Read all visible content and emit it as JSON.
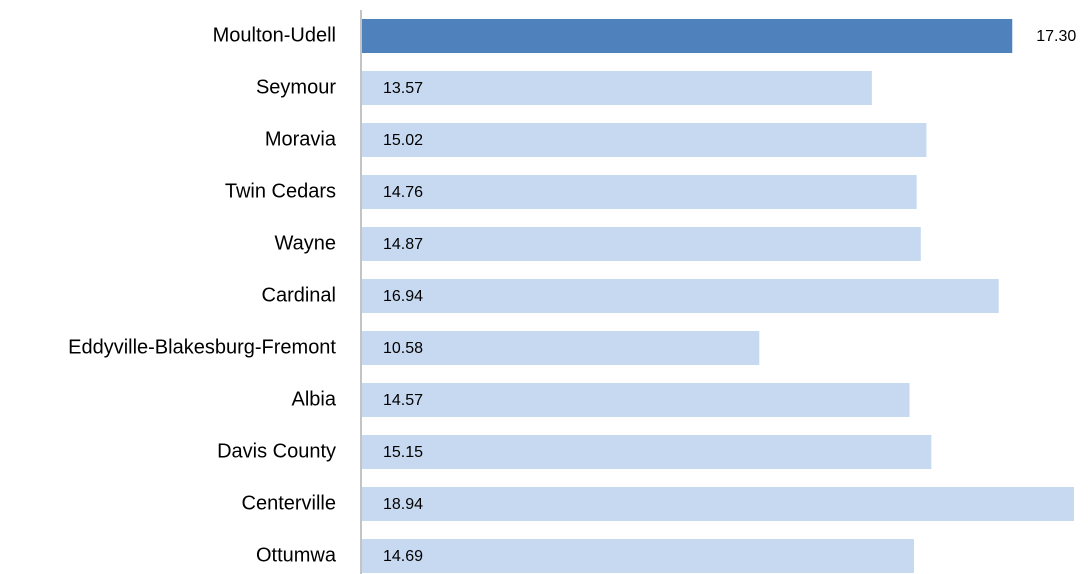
{
  "chart_data": {
    "type": "barh",
    "categories": [
      "Moulton-Udell",
      "Seymour",
      "Moravia",
      "Twin Cedars",
      "Wayne",
      "Cardinal",
      "Eddyville-Blakesburg-Fremont",
      "Albia",
      "Davis County",
      "Centerville",
      "Ottumwa"
    ],
    "values": [
      17.3,
      13.57,
      15.02,
      14.76,
      14.87,
      16.94,
      10.58,
      14.57,
      15.15,
      18.94,
      14.69
    ],
    "value_labels": [
      "17.30",
      "13.57",
      "15.02",
      "14.76",
      "14.87",
      "16.94",
      "10.58",
      "14.57",
      "15.15",
      "18.94",
      "14.69"
    ],
    "colors": [
      "#4f81bd",
      "#c6d9f0",
      "#c6d9f0",
      "#c6d9f0",
      "#c6d9f0",
      "#c6d9f0",
      "#c6d9f0",
      "#c6d9f0",
      "#c6d9f0",
      "#c6d9f0",
      "#c6d9f0"
    ]
  }
}
